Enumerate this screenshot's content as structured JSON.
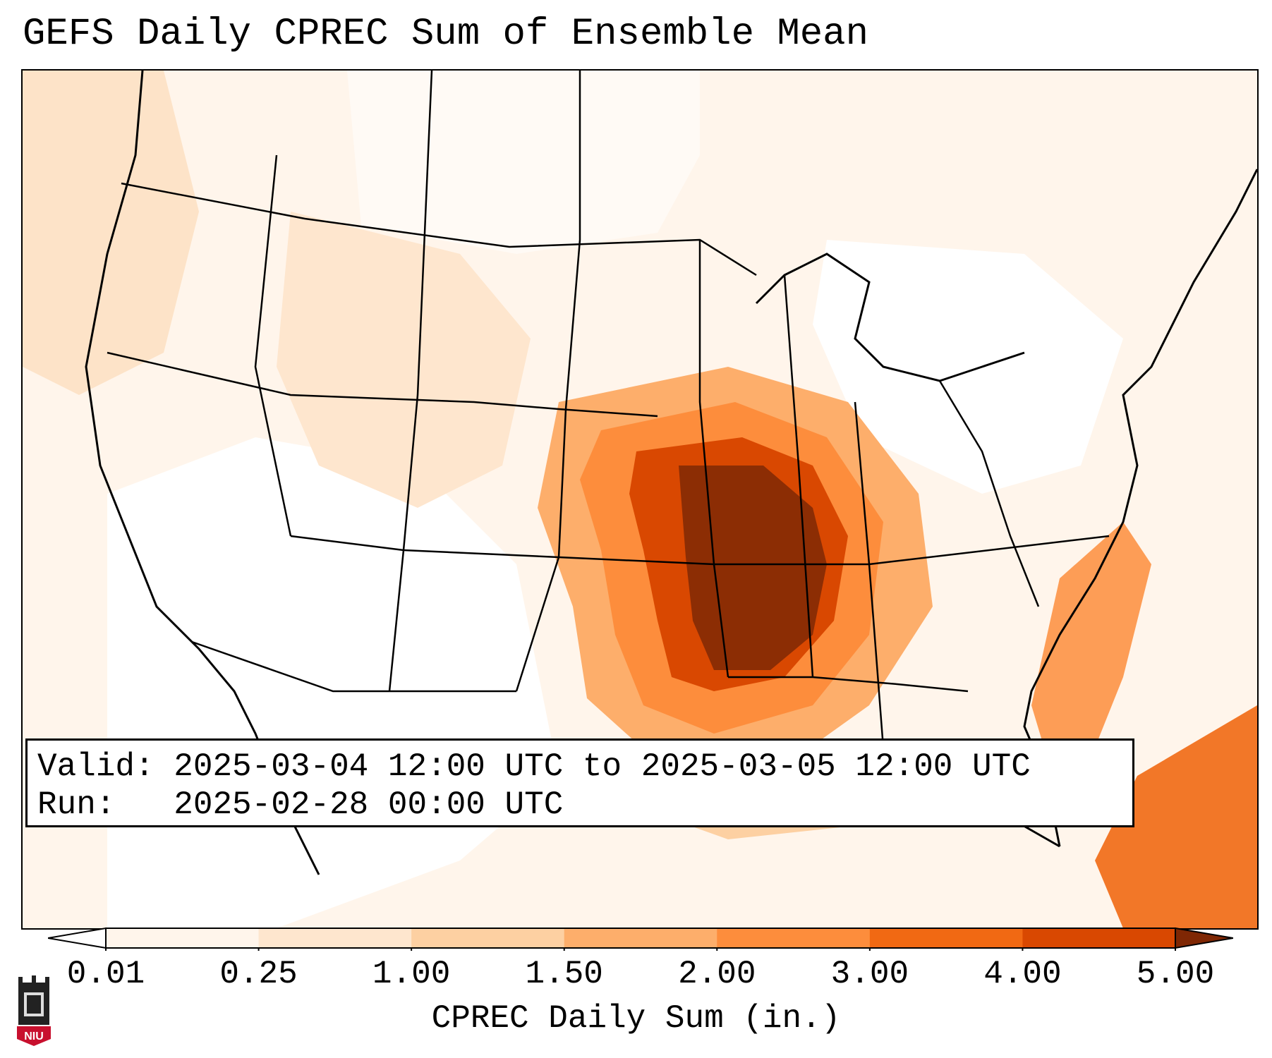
{
  "title": "GEFS Daily CPREC Sum of Ensemble Mean",
  "info": {
    "valid_line": "Valid: 2025-03-04 12:00 UTC to 2025-03-05 12:00 UTC",
    "run_line": "Run:   2025-02-28 00:00 UTC"
  },
  "colorbar": {
    "label": "CPREC Daily Sum (in.)",
    "ticks": [
      "0.01",
      "0.25",
      "1.00",
      "1.50",
      "2.00",
      "3.00",
      "4.00",
      "5.00"
    ],
    "colors": [
      "#fff5eb",
      "#fee6ce",
      "#fdd0a2",
      "#fdae6b",
      "#fd8d3c",
      "#f16913",
      "#d94801",
      "#8c2d04"
    ],
    "extend": "both"
  },
  "legend_colors": {
    "under": "#ffffff",
    "over": "#7f2704"
  },
  "logo": {
    "text": "NIU",
    "color": "#c8102e"
  }
}
